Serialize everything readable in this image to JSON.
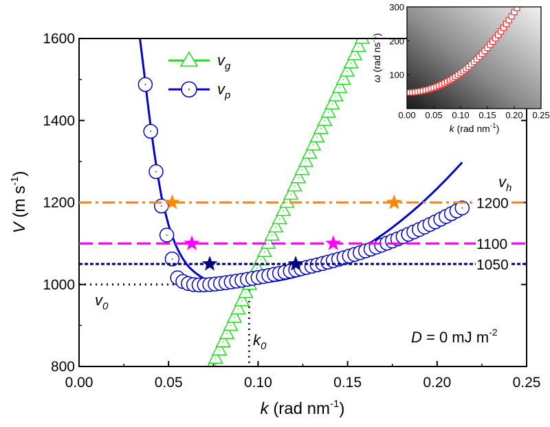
{
  "chart_data": {
    "type": "line",
    "main": {
      "xlim": [
        0.0,
        0.25
      ],
      "ylim": [
        800,
        1600
      ],
      "x_ticks": [
        "0.00",
        "0.05",
        "0.10",
        "0.15",
        "0.20",
        "0.25"
      ],
      "x_tick_values": [
        0.0,
        0.05,
        0.1,
        0.15,
        0.2,
        0.25
      ],
      "y_ticks": [
        "800",
        "1000",
        "1200",
        "1400",
        "1600"
      ],
      "y_tick_values": [
        800,
        1000,
        1200,
        1400,
        1600
      ],
      "xlabel_var": "k",
      "xlabel_units": "(rad nm",
      "xlabel_exp": "-1",
      "xlabel_close": ")",
      "ylabel_var": "V",
      "ylabel_units": "(m s",
      "ylabel_exp": "-1",
      "ylabel_close": ")",
      "legend": [
        {
          "var": "v",
          "sub": "g",
          "color": "#22dd22",
          "marker": "triangle"
        },
        {
          "var": "v",
          "sub": "p",
          "color": "#0000cc",
          "marker": "circle"
        }
      ],
      "series": [
        {
          "id": "vg",
          "color": "#22dd22",
          "marker": "triangle",
          "x": [
            0.0742,
            0.0763,
            0.0784,
            0.0805,
            0.0826,
            0.0847,
            0.0868,
            0.0889,
            0.091,
            0.0931,
            0.0952,
            0.0973,
            0.0994,
            0.1015,
            0.1036,
            0.1057,
            0.1078,
            0.1099,
            0.112,
            0.1141,
            0.1162,
            0.1183,
            0.1204,
            0.1225,
            0.1246,
            0.1267,
            0.1288,
            0.1309,
            0.133,
            0.1351,
            0.1372,
            0.1393,
            0.1414,
            0.1435,
            0.1456,
            0.1477,
            0.1498,
            0.1519,
            0.154,
            0.1561,
            0.1582,
            0.1603
          ],
          "y": [
            800,
            820,
            840,
            860,
            880,
            900,
            920,
            940,
            960,
            980,
            1000,
            1020,
            1040,
            1060,
            1080,
            1100,
            1120,
            1140,
            1160,
            1180,
            1200,
            1220,
            1240,
            1260,
            1280,
            1300,
            1320,
            1340,
            1360,
            1380,
            1400,
            1420,
            1440,
            1460,
            1480,
            1500,
            1520,
            1540,
            1560,
            1580,
            1600,
            1620
          ]
        },
        {
          "id": "vp",
          "color": "#0000cc",
          "marker": "circle",
          "x": [
            0.034,
            0.037,
            0.04,
            0.043,
            0.046,
            0.049,
            0.052,
            0.055,
            0.058,
            0.061,
            0.064,
            0.067,
            0.07,
            0.073,
            0.076,
            0.079,
            0.082,
            0.085,
            0.088,
            0.091,
            0.094,
            0.097,
            0.1,
            0.103,
            0.106,
            0.109,
            0.112,
            0.115,
            0.118,
            0.121,
            0.124,
            0.127,
            0.13,
            0.133,
            0.136,
            0.139,
            0.142,
            0.145,
            0.148,
            0.151,
            0.154,
            0.157,
            0.16,
            0.163,
            0.166,
            0.169,
            0.172,
            0.175,
            0.178,
            0.181,
            0.184,
            0.187,
            0.19,
            0.193,
            0.196,
            0.199,
            0.202,
            0.205,
            0.208,
            0.211,
            0.214
          ],
          "y": [
            1621.3,
            1487.9,
            1373.6,
            1275.3,
            1191.4,
            1120.6,
            1062.2,
            1016.4,
            1007.3,
            1002.4,
            999.8,
            998.9,
            999.1,
            999.9,
            1001.1,
            1002.6,
            1004.3,
            1006.2,
            1008.2,
            1010.3,
            1012.5,
            1014.8,
            1017.2,
            1019.6,
            1022.1,
            1024.7,
            1027.3,
            1030.0,
            1032.8,
            1035.6,
            1038.5,
            1041.5,
            1044.6,
            1047.8,
            1051.1,
            1054.5,
            1058.0,
            1061.6,
            1065.4,
            1069.3,
            1073.3,
            1077.5,
            1081.9,
            1086.4,
            1091.1,
            1095.9,
            1100.9,
            1106.0,
            1111.3,
            1116.8,
            1122.4,
            1128.2,
            1134.1,
            1140.2,
            1146.4,
            1152.8,
            1159.3,
            1166.0,
            1172.8,
            1179.7,
            1186.7
          ],
          "line_x": [
            0.034,
            0.036,
            0.038,
            0.04,
            0.042,
            0.044,
            0.046,
            0.048,
            0.05,
            0.052,
            0.054,
            0.056,
            0.058,
            0.06,
            0.062,
            0.064,
            0.066,
            0.068,
            0.07,
            0.072,
            0.074,
            0.076,
            0.078,
            0.08,
            0.082,
            0.084,
            0.086,
            0.088,
            0.09,
            0.092,
            0.094,
            0.096,
            0.098,
            0.1,
            0.105,
            0.11,
            0.115,
            0.12,
            0.125,
            0.13,
            0.135,
            0.14,
            0.145,
            0.15,
            0.155,
            0.16,
            0.165,
            0.17,
            0.175,
            0.18,
            0.185,
            0.19,
            0.195,
            0.2,
            0.205,
            0.21,
            0.214
          ],
          "line_y": [
            1600,
            1530,
            1455,
            1385,
            1322,
            1265,
            1215,
            1178,
            1145,
            1118,
            1096,
            1078,
            1063,
            1050,
            1040,
            1032,
            1025,
            1019,
            1014,
            1010,
            1007,
            1005,
            1003,
            1001.5,
            1000.5,
            1000,
            999.8,
            999.8,
            1000,
            1000.5,
            1001,
            1001.8,
            1002.6,
            1003.5,
            1006,
            1009,
            1013,
            1018,
            1024,
            1031,
            1039,
            1048,
            1058,
            1069,
            1081,
            1094,
            1108,
            1123,
            1139,
            1156,
            1174,
            1193,
            1213,
            1234,
            1256,
            1279,
            1298
          ]
        }
      ],
      "hlines": [
        {
          "y": 1200,
          "label": "1200",
          "color": "#ff8800",
          "style": "dashdot"
        },
        {
          "y": 1100,
          "label": "1100",
          "color": "#ff00ff",
          "style": "dashed"
        },
        {
          "y": 1050,
          "label": "1050",
          "color": "#000080",
          "style": "dotted-dense"
        }
      ],
      "vh_label_var": "v",
      "vh_label_sub": "h",
      "stars": [
        {
          "x": 0.052,
          "y": 1200,
          "color": "#ff8800"
        },
        {
          "x": 0.176,
          "y": 1200,
          "color": "#ff8800"
        },
        {
          "x": 0.063,
          "y": 1100,
          "color": "#ff00ff"
        },
        {
          "x": 0.142,
          "y": 1100,
          "color": "#ff00ff"
        },
        {
          "x": 0.073,
          "y": 1050,
          "color": "#000080"
        },
        {
          "x": 0.121,
          "y": 1050,
          "color": "#000080"
        }
      ],
      "v0_label_var": "v",
      "v0_label_sub": "0",
      "k0_label_var": "k",
      "k0_label_sub": "0",
      "v0_value": 1000,
      "k0_value": 0.095,
      "annotation_var": "D",
      "annotation_text": " = 0 mJ m",
      "annotation_exp": "-2"
    },
    "inset": {
      "type": "scatter",
      "xlim": [
        0.0,
        0.25
      ],
      "ylim": [
        0,
        300
      ],
      "x_ticks": [
        "0.00",
        "0.05",
        "0.10",
        "0.15",
        "0.20",
        "0.25"
      ],
      "x_tick_values": [
        0.0,
        0.05,
        0.1,
        0.15,
        0.2,
        0.25
      ],
      "y_ticks": [
        "100",
        "200",
        "300"
      ],
      "y_tick_values": [
        100,
        200,
        300
      ],
      "xlabel_var": "k",
      "xlabel_units": "(rad nm",
      "xlabel_exp": "-1",
      "xlabel_close": ")",
      "ylabel_var": "ω",
      "ylabel_units": "(rad ns",
      "ylabel_exp": "-1",
      "ylabel_close": ")",
      "marker_color": "#ee3333",
      "marker": "square",
      "x": [
        0.0,
        0.005,
        0.01,
        0.015,
        0.02,
        0.025,
        0.03,
        0.035,
        0.04,
        0.045,
        0.05,
        0.055,
        0.06,
        0.065,
        0.07,
        0.075,
        0.08,
        0.085,
        0.09,
        0.095,
        0.1,
        0.105,
        0.11,
        0.115,
        0.12,
        0.125,
        0.13,
        0.135,
        0.14,
        0.145,
        0.15,
        0.155,
        0.16,
        0.165,
        0.17,
        0.175,
        0.18,
        0.185,
        0.19,
        0.195,
        0.2,
        0.205,
        0.21,
        0.215,
        0.22
      ],
      "y": [
        47.5,
        47.6,
        48.0,
        48.7,
        49.7,
        51.0,
        52.5,
        54.4,
        56.5,
        58.9,
        61.6,
        64.6,
        67.9,
        71.5,
        75.4,
        79.6,
        84.1,
        88.9,
        94.0,
        99.4,
        105.1,
        111.1,
        117.4,
        124.0,
        131.0,
        138.2,
        145.8,
        153.7,
        161.9,
        170.4,
        179.2,
        188.3,
        197.8,
        207.5,
        217.6,
        228.0,
        238.7,
        249.7,
        261.1,
        272.7,
        284.7,
        297.0,
        309.6,
        322.6,
        335.8
      ]
    }
  }
}
